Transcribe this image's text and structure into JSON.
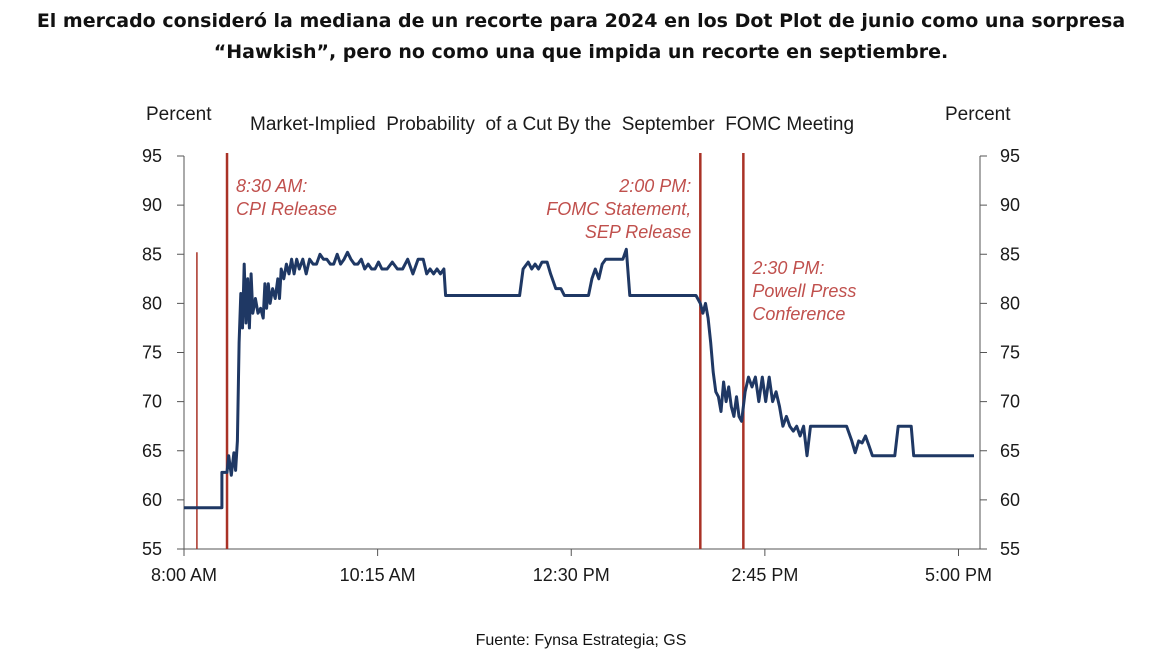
{
  "headline": {
    "line1": "El mercado consideró la mediana de un recorte para 2024 en los Dot Plot de junio como una sorpresa",
    "line2": "“Hawkish”, pero no como una que impida un recorte en septiembre."
  },
  "source": "Fuente: Fynsa Estrategia; GS",
  "colors": {
    "series": "#1f3864",
    "event_lines": "#a93226",
    "annotation_text": "#c0504d",
    "axis": "#555555"
  },
  "chart_data": {
    "type": "line",
    "title": "Market-Implied  Probability  of a Cut By the  September  FOMC Meeting",
    "ylabel_left": "Percent",
    "ylabel_right": "Percent",
    "ylim": [
      55,
      95
    ],
    "yticks": [
      55,
      60,
      65,
      70,
      75,
      80,
      85,
      90,
      95
    ],
    "x_unit": "hours since 8:00 AM",
    "xlim": [
      0,
      9.25
    ],
    "xticks": [
      {
        "value": 0,
        "label": "8:00 AM"
      },
      {
        "value": 2.25,
        "label": "10:15 AM"
      },
      {
        "value": 4.5,
        "label": "12:30 PM"
      },
      {
        "value": 6.75,
        "label": "2:45 PM"
      },
      {
        "value": 9.0,
        "label": "5:00 PM"
      }
    ],
    "events": [
      {
        "time": 0.15,
        "label": []
      },
      {
        "time": 0.5,
        "label": [
          "8:30 AM:",
          "CPI Release"
        ],
        "align": "left"
      },
      {
        "time": 6.0,
        "label": [
          "2:00 PM:",
          "FOMC  Statement,",
          "SEP Release"
        ],
        "align": "right"
      },
      {
        "time": 6.5,
        "label": [
          "2:30 PM:",
          "Powell Press",
          "Conference"
        ],
        "align": "left"
      }
    ],
    "series": [
      {
        "values": [
          [
            0.0,
            59.2
          ],
          [
            0.44,
            59.2
          ],
          [
            0.44,
            62.8
          ],
          [
            0.5,
            62.8
          ],
          [
            0.52,
            64.5
          ],
          [
            0.55,
            62.5
          ],
          [
            0.58,
            64.8
          ],
          [
            0.6,
            63.0
          ],
          [
            0.62,
            66.0
          ],
          [
            0.64,
            76.0
          ],
          [
            0.66,
            81.0
          ],
          [
            0.68,
            77.5
          ],
          [
            0.7,
            84.0
          ],
          [
            0.72,
            78.0
          ],
          [
            0.74,
            82.5
          ],
          [
            0.76,
            77.5
          ],
          [
            0.78,
            83.0
          ],
          [
            0.8,
            79.0
          ],
          [
            0.83,
            80.5
          ],
          [
            0.86,
            79.0
          ],
          [
            0.89,
            79.5
          ],
          [
            0.92,
            78.5
          ],
          [
            0.94,
            82.0
          ],
          [
            0.96,
            79.5
          ],
          [
            0.98,
            82.0
          ],
          [
            1.0,
            80.0
          ],
          [
            1.03,
            81.5
          ],
          [
            1.06,
            80.5
          ],
          [
            1.09,
            82.5
          ],
          [
            1.11,
            80.5
          ],
          [
            1.13,
            83.5
          ],
          [
            1.16,
            82.5
          ],
          [
            1.19,
            84.0
          ],
          [
            1.22,
            83.0
          ],
          [
            1.25,
            84.5
          ],
          [
            1.28,
            83.0
          ],
          [
            1.31,
            84.5
          ],
          [
            1.34,
            83.5
          ],
          [
            1.38,
            84.5
          ],
          [
            1.42,
            83.0
          ],
          [
            1.46,
            84.5
          ],
          [
            1.5,
            84.0
          ],
          [
            1.54,
            84.0
          ],
          [
            1.58,
            85.0
          ],
          [
            1.62,
            84.5
          ],
          [
            1.66,
            84.5
          ],
          [
            1.7,
            84.0
          ],
          [
            1.74,
            84.0
          ],
          [
            1.78,
            85.0
          ],
          [
            1.82,
            84.0
          ],
          [
            1.86,
            84.5
          ],
          [
            1.9,
            85.2
          ],
          [
            1.94,
            84.5
          ],
          [
            1.98,
            84.0
          ],
          [
            2.02,
            84.0
          ],
          [
            2.06,
            84.5
          ],
          [
            2.1,
            83.5
          ],
          [
            2.14,
            84.0
          ],
          [
            2.18,
            83.5
          ],
          [
            2.22,
            83.5
          ],
          [
            2.26,
            84.2
          ],
          [
            2.3,
            83.5
          ],
          [
            2.36,
            83.5
          ],
          [
            2.42,
            84.2
          ],
          [
            2.48,
            83.5
          ],
          [
            2.54,
            83.5
          ],
          [
            2.6,
            84.5
          ],
          [
            2.66,
            83.0
          ],
          [
            2.72,
            84.5
          ],
          [
            2.78,
            84.5
          ],
          [
            2.82,
            83.0
          ],
          [
            2.86,
            83.5
          ],
          [
            2.9,
            83.0
          ],
          [
            2.94,
            83.5
          ],
          [
            2.98,
            83.0
          ],
          [
            3.02,
            83.5
          ],
          [
            3.04,
            80.8
          ],
          [
            3.5,
            80.8
          ],
          [
            3.9,
            80.8
          ],
          [
            3.94,
            83.5
          ],
          [
            4.0,
            84.2
          ],
          [
            4.04,
            83.5
          ],
          [
            4.08,
            84.0
          ],
          [
            4.12,
            83.5
          ],
          [
            4.16,
            84.2
          ],
          [
            4.22,
            84.2
          ],
          [
            4.26,
            83.0
          ],
          [
            4.32,
            81.5
          ],
          [
            4.38,
            81.5
          ],
          [
            4.42,
            80.8
          ],
          [
            4.6,
            80.8
          ],
          [
            4.7,
            80.8
          ],
          [
            4.74,
            82.5
          ],
          [
            4.78,
            83.5
          ],
          [
            4.82,
            82.5
          ],
          [
            4.86,
            84.0
          ],
          [
            4.9,
            84.5
          ],
          [
            5.1,
            84.5
          ],
          [
            5.14,
            85.5
          ],
          [
            5.18,
            80.8
          ],
          [
            5.5,
            80.8
          ],
          [
            5.95,
            80.8
          ],
          [
            6.0,
            80.0
          ],
          [
            6.03,
            79.0
          ],
          [
            6.06,
            80.0
          ],
          [
            6.09,
            78.5
          ],
          [
            6.12,
            76.0
          ],
          [
            6.15,
            73.0
          ],
          [
            6.18,
            71.0
          ],
          [
            6.21,
            70.5
          ],
          [
            6.24,
            69.0
          ],
          [
            6.27,
            72.0
          ],
          [
            6.3,
            70.0
          ],
          [
            6.33,
            71.5
          ],
          [
            6.36,
            69.5
          ],
          [
            6.39,
            68.5
          ],
          [
            6.42,
            70.5
          ],
          [
            6.45,
            68.5
          ],
          [
            6.48,
            68.0
          ],
          [
            6.52,
            71.0
          ],
          [
            6.56,
            72.5
          ],
          [
            6.6,
            71.5
          ],
          [
            6.64,
            72.5
          ],
          [
            6.68,
            70.0
          ],
          [
            6.72,
            72.5
          ],
          [
            6.76,
            70.0
          ],
          [
            6.8,
            72.5
          ],
          [
            6.84,
            70.0
          ],
          [
            6.88,
            71.0
          ],
          [
            6.92,
            69.5
          ],
          [
            6.96,
            67.5
          ],
          [
            7.0,
            68.5
          ],
          [
            7.04,
            67.5
          ],
          [
            7.08,
            67.0
          ],
          [
            7.12,
            67.5
          ],
          [
            7.16,
            66.5
          ],
          [
            7.2,
            67.5
          ],
          [
            7.24,
            64.5
          ],
          [
            7.28,
            67.5
          ],
          [
            7.4,
            67.5
          ],
          [
            7.55,
            67.5
          ],
          [
            7.7,
            67.5
          ],
          [
            7.76,
            66.0
          ],
          [
            7.8,
            64.8
          ],
          [
            7.84,
            66.0
          ],
          [
            7.88,
            65.8
          ],
          [
            7.92,
            66.5
          ],
          [
            7.96,
            65.5
          ],
          [
            8.0,
            64.5
          ],
          [
            8.1,
            64.5
          ],
          [
            8.2,
            64.5
          ],
          [
            8.26,
            64.5
          ],
          [
            8.3,
            67.5
          ],
          [
            8.4,
            67.5
          ],
          [
            8.45,
            67.5
          ],
          [
            8.48,
            64.5
          ],
          [
            8.7,
            64.5
          ],
          [
            8.9,
            64.5
          ],
          [
            9.1,
            64.5
          ],
          [
            9.18,
            64.5
          ]
        ]
      }
    ]
  }
}
